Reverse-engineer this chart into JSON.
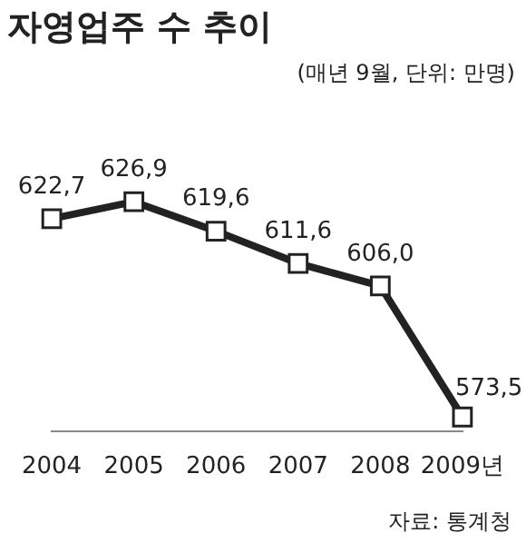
{
  "chart_data": {
    "type": "line",
    "title": "자영업주 수 추이",
    "subtitle": "(매년 9월, 단위: 만명)",
    "annotations": [
      "자료: 통계청"
    ],
    "categories": [
      "2004",
      "2005",
      "2006",
      "2007",
      "2008",
      "2009년"
    ],
    "values": [
      622.7,
      626.9,
      619.6,
      611.6,
      606.0,
      573.5
    ],
    "value_labels": [
      "622,7",
      "626,9",
      "619,6",
      "611,6",
      "606,0",
      "573,5"
    ],
    "color": "#222222",
    "marker": "square",
    "line_style": "solid",
    "grid": false,
    "legend": false
  }
}
